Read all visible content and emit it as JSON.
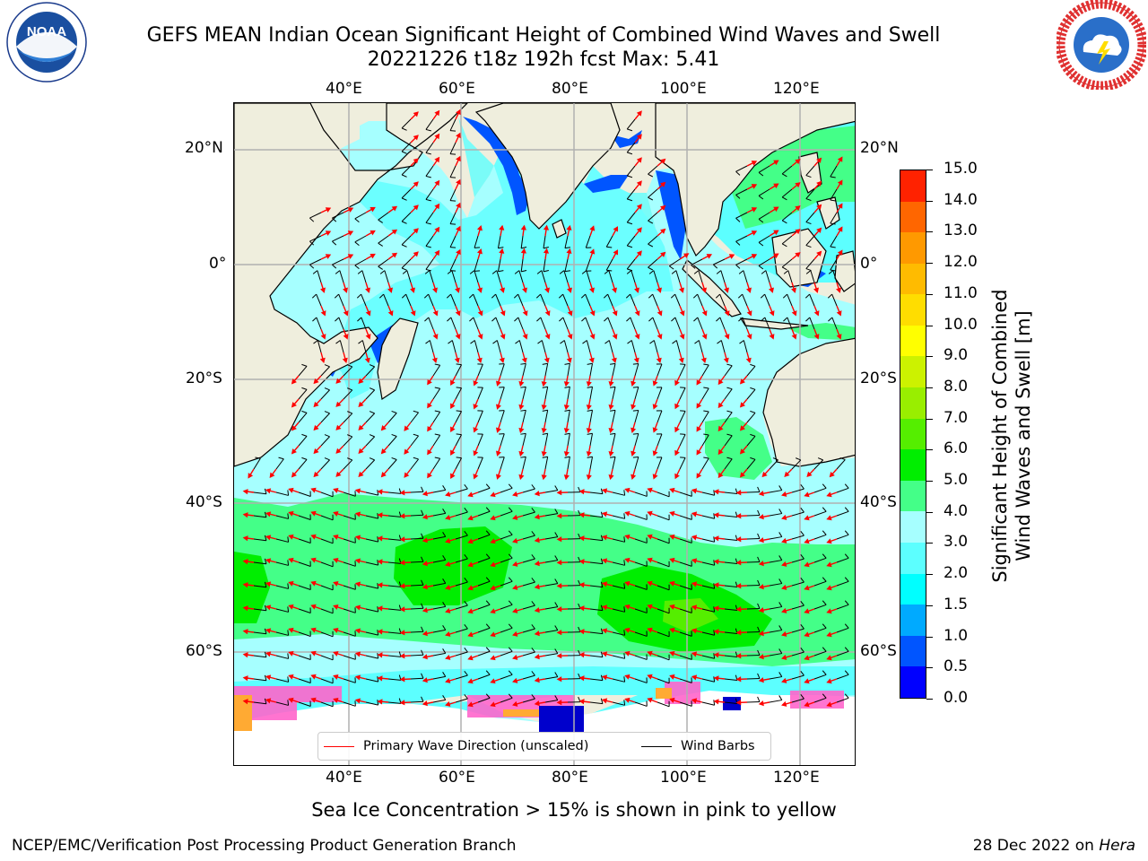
{
  "header": {
    "title_line1": "GEFS MEAN Indian Ocean Significant Height of Combined Wind Waves and Swell",
    "title_line2": "20221226 t18z 192h fcst   Max: 5.41"
  },
  "logos": {
    "noaa": {
      "text": "NOAA",
      "ring_text": "NATIONAL OCEANIC AND ATMOSPHERIC ADMINISTRATION · U.S. DEPARTMENT OF COMMERCE"
    },
    "nws": {
      "ring_text": "NATIONAL WEATHER SERVICE"
    }
  },
  "map": {
    "lon_labels": [
      "40°E",
      "60°E",
      "80°E",
      "100°E",
      "120°E"
    ],
    "lat_labels": [
      "20°N",
      "0°",
      "20°S",
      "40°S",
      "60°S"
    ],
    "legend": {
      "wave_direction": "Primary Wave Direction (unscaled)",
      "wind_barbs": "Wind Barbs",
      "wave_color": "#ff0000",
      "barb_color": "#000000"
    },
    "land_color": "#efeedd",
    "ice_color": "#ff66cc"
  },
  "colorbar": {
    "title_line1": "Significant Height of Combined",
    "title_line2": "Wind Waves and Swell [m]",
    "ticks": [
      "0.0",
      "0.5",
      "1.0",
      "1.5",
      "2.0",
      "3.0",
      "4.0",
      "5.0",
      "6.0",
      "7.0",
      "8.0",
      "9.0",
      "10.0",
      "11.0",
      "12.0",
      "13.0",
      "14.0",
      "15.0"
    ],
    "colors": [
      "#0000ff",
      "#0055ff",
      "#00aaff",
      "#00ffff",
      "#5cffff",
      "#a6ffff",
      "#44ff88",
      "#00ee00",
      "#55ee00",
      "#99ee00",
      "#ccf200",
      "#ffff00",
      "#ffdd00",
      "#ffbb00",
      "#ff9900",
      "#ff6600",
      "#ff2200"
    ]
  },
  "note": "Sea Ice Concentration > 15% is shown in pink to yellow",
  "footer": {
    "left": "NCEP/EMC/Verification Post Processing Product Generation Branch",
    "date": "28 Dec 2022 on",
    "host": "Hera"
  }
}
